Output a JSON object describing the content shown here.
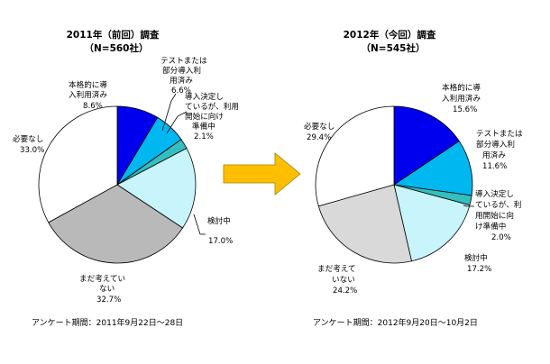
{
  "chart_data": [
    {
      "type": "pie",
      "title": "2011年（前回）調査",
      "subtitle": "（N=560社）",
      "period": "アンケート期間：2011年9月22日～28日",
      "slices": [
        {
          "label": "本格的に導入利用済み",
          "label_lines": [
            "本格的に導",
            "入利用済み"
          ],
          "pct_text": "8.6%",
          "value": 8.6,
          "color": "#0000ee"
        },
        {
          "label": "テストまたは部分導入利用済み",
          "label_lines": [
            "テストまたは",
            "部分導入利",
            "用済み"
          ],
          "pct_text": "6.6%",
          "value": 6.6,
          "color": "#00b7ef"
        },
        {
          "label": "導入決定しているが、利用開始に向け準備中",
          "label_lines": [
            "導入決定し",
            "ているが、利用",
            "開始に向け",
            "準備中"
          ],
          "pct_text": "2.1%",
          "value": 2.1,
          "color": "#33bfbf"
        },
        {
          "label": "検討中",
          "label_lines": [
            "検討中"
          ],
          "pct_text": "17.0%",
          "value": 17.0,
          "color": "#c8f4fc"
        },
        {
          "label": "まだ考えていない",
          "label_lines": [
            "まだ考えてい",
            "ない"
          ],
          "pct_text": "32.7%",
          "value": 32.7,
          "color": "#b9b9b9"
        },
        {
          "label": "必要なし",
          "label_lines": [
            "必要なし"
          ],
          "pct_text": "33.0%",
          "value": 33.0,
          "color": "#ffffff"
        }
      ]
    },
    {
      "type": "pie",
      "title": "2012年（今回）調査",
      "subtitle": "（N=545社）",
      "period": "アンケート期間：2012年9月20日～10月2日",
      "slices": [
        {
          "label": "本格的に導入利用済み",
          "label_lines": [
            "本格的に導",
            "入利用済み"
          ],
          "pct_text": "15.6%",
          "value": 15.6,
          "color": "#0000ee"
        },
        {
          "label": "テストまたは部分導入利用済み",
          "label_lines": [
            "テストまたは",
            "部分導入利",
            "用済み"
          ],
          "pct_text": "11.6%",
          "value": 11.6,
          "color": "#00b7ef"
        },
        {
          "label": "導入決定しているが、利用開始に向け準備中",
          "label_lines": [
            "導入決定し",
            "ているが、利",
            "用開始に向",
            "け準備中"
          ],
          "pct_text": "2.0%",
          "value": 2.0,
          "color": "#33bfbf"
        },
        {
          "label": "検討中",
          "label_lines": [
            "検討中"
          ],
          "pct_text": "17.2%",
          "value": 17.2,
          "color": "#c8f4fc"
        },
        {
          "label": "まだ考えていない",
          "label_lines": [
            "まだ考えて",
            "いない"
          ],
          "pct_text": "24.2%",
          "value": 24.2,
          "color": "#d9d9d9"
        },
        {
          "label": "必要なし",
          "label_lines": [
            "必要なし"
          ],
          "pct_text": "29.4%",
          "value": 29.4,
          "color": "#ffffff"
        }
      ]
    }
  ],
  "arrow_color": "#ffbf00"
}
